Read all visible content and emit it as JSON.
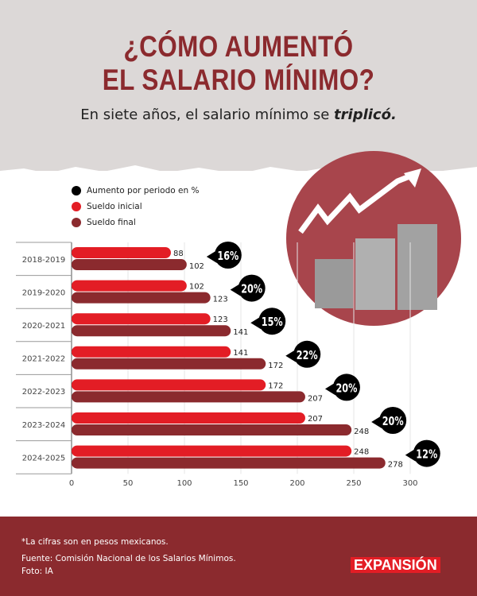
{
  "header": {
    "title_line1": "¿CÓMO AUMENTÓ",
    "title_line2": "EL SALARIO MÍNIMO?",
    "subtitle_pre": "En siete años, el salario mínimo se ",
    "subtitle_em": "triplicó."
  },
  "legend": [
    {
      "label": "Aumento por periodo en %",
      "color": "#000000"
    },
    {
      "label": "Sueldo inicial",
      "color": "#e31d25"
    },
    {
      "label": "Sueldo final",
      "color": "#8b2a2e"
    }
  ],
  "chart_data": {
    "type": "bar",
    "orientation": "horizontal",
    "categories": [
      "2018-2019",
      "2019-2020",
      "2020-2021",
      "2021-2022",
      "2022-2023",
      "2023-2024",
      "2024-2025"
    ],
    "series": [
      {
        "name": "Sueldo inicial",
        "color": "#e31d25",
        "values": [
          88,
          102,
          123,
          141,
          172,
          207,
          248
        ]
      },
      {
        "name": "Sueldo final",
        "color": "#8b2a2e",
        "values": [
          102,
          123,
          141,
          172,
          207,
          248,
          278
        ]
      }
    ],
    "increase_pct": [
      "16%",
      "20%",
      "15%",
      "22%",
      "20%",
      "20%",
      "12%"
    ],
    "xlim": [
      0,
      300
    ],
    "xticks": [
      0,
      50,
      100,
      150,
      200,
      250,
      300
    ],
    "grid": true,
    "legend_position": "top-left"
  },
  "footer": {
    "note": "*La cifras son en pesos mexicanos.",
    "source": "Fuente: Comisión Nacional de los Salarios Mínimos.",
    "photo": "Foto: IA",
    "logo": "EXPANSIÓN"
  }
}
